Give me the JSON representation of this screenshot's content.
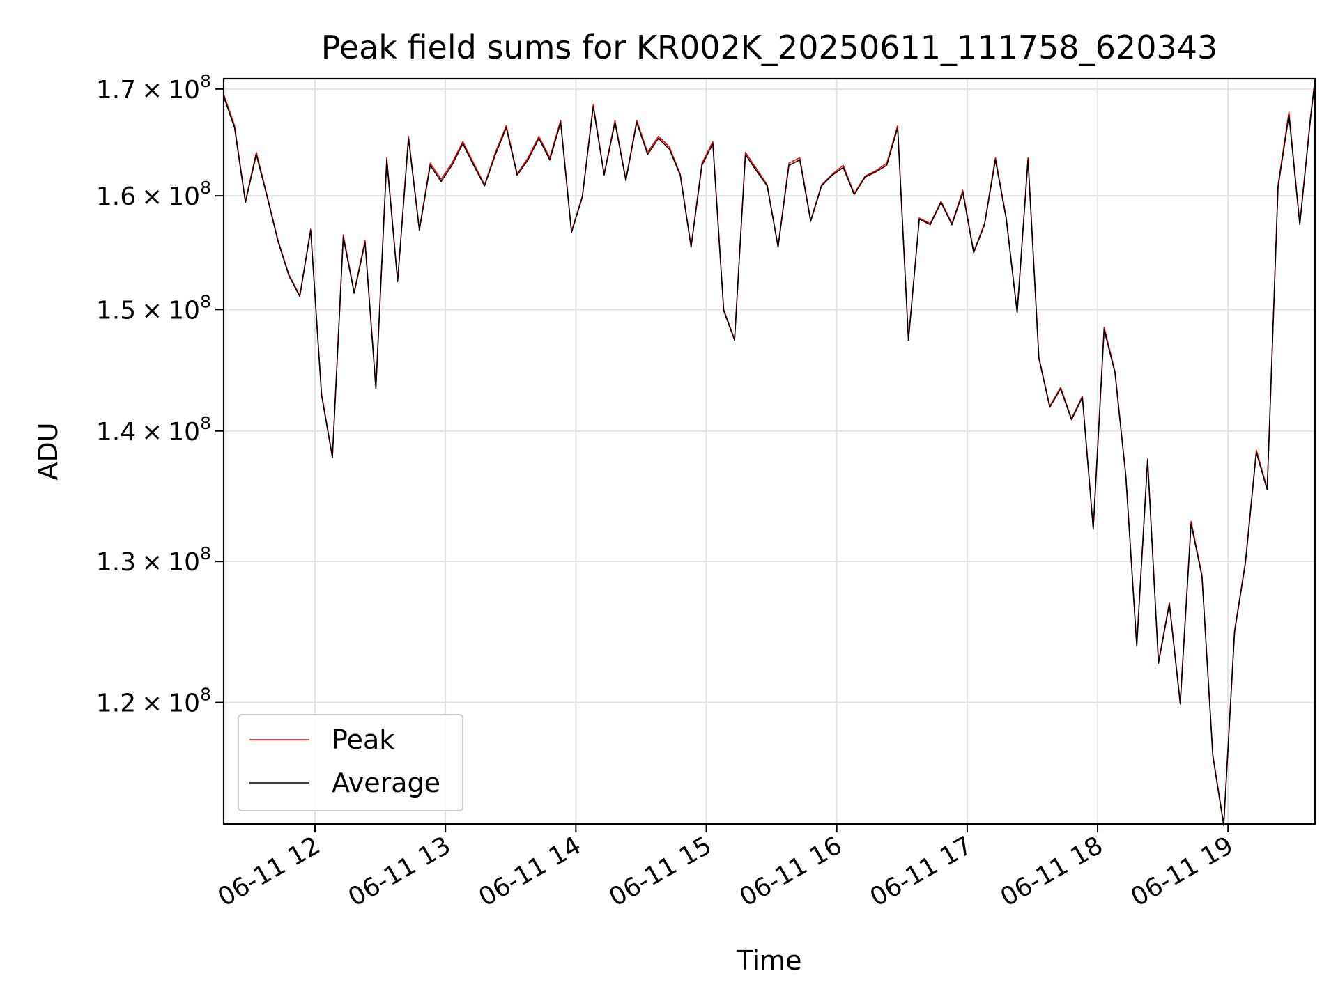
{
  "chart_data": {
    "type": "line",
    "title": "Peak field sums for KR002K_20250611_111758_620343",
    "xlabel": "Time",
    "ylabel": "ADU",
    "yscale": "log",
    "ylim": [
      112000000,
      171000000
    ],
    "xlim": [
      "06-11 11:18",
      "06-11 19:40"
    ],
    "grid": true,
    "legend_position": "lower-left",
    "x_ticks": [
      "06-11 12",
      "06-11 13",
      "06-11 14",
      "06-11 15",
      "06-11 16",
      "06-11 17",
      "06-11 18",
      "06-11 19"
    ],
    "y_ticks": [
      {
        "value": 120000000,
        "mantissa": "1.2",
        "times": "×",
        "base": "10",
        "exp": "8"
      },
      {
        "value": 130000000,
        "mantissa": "1.3",
        "times": "×",
        "base": "10",
        "exp": "8"
      },
      {
        "value": 140000000,
        "mantissa": "1.4",
        "times": "×",
        "base": "10",
        "exp": "8"
      },
      {
        "value": 150000000,
        "mantissa": "1.5",
        "times": "×",
        "base": "10",
        "exp": "8"
      },
      {
        "value": 160000000,
        "mantissa": "1.6",
        "times": "×",
        "base": "10",
        "exp": "8"
      },
      {
        "value": 170000000,
        "mantissa": "1.7",
        "times": "×",
        "base": "10",
        "exp": "8"
      }
    ],
    "x": [
      "11:18",
      "11:23",
      "11:28",
      "11:33",
      "11:38",
      "11:43",
      "11:48",
      "11:53",
      "11:58",
      "12:03",
      "12:08",
      "12:13",
      "12:18",
      "12:23",
      "12:28",
      "12:33",
      "12:38",
      "12:43",
      "12:48",
      "12:53",
      "12:58",
      "13:03",
      "13:08",
      "13:13",
      "13:18",
      "13:23",
      "13:28",
      "13:33",
      "13:38",
      "13:43",
      "13:48",
      "13:53",
      "13:58",
      "14:03",
      "14:08",
      "14:13",
      "14:18",
      "14:23",
      "14:28",
      "14:33",
      "14:38",
      "14:43",
      "14:48",
      "14:53",
      "14:58",
      "15:03",
      "15:08",
      "15:13",
      "15:18",
      "15:23",
      "15:28",
      "15:33",
      "15:38",
      "15:43",
      "15:48",
      "15:53",
      "15:58",
      "16:03",
      "16:08",
      "16:13",
      "16:18",
      "16:23",
      "16:28",
      "16:33",
      "16:38",
      "16:43",
      "16:48",
      "16:53",
      "16:58",
      "17:03",
      "17:08",
      "17:13",
      "17:18",
      "17:23",
      "17:28",
      "17:33",
      "17:38",
      "17:43",
      "17:48",
      "17:53",
      "17:58",
      "18:03",
      "18:08",
      "18:13",
      "18:18",
      "18:23",
      "18:28",
      "18:33",
      "18:38",
      "18:43",
      "18:48",
      "18:53",
      "18:58",
      "19:03",
      "19:08",
      "19:13",
      "19:18",
      "19:23",
      "19:28",
      "19:33",
      "19:38",
      "19:40"
    ],
    "series": [
      {
        "name": "Peak",
        "color": "#ff0000",
        "values": [
          169500000,
          166500000,
          159500000,
          164000000,
          160000000,
          156000000,
          153000000,
          151200000,
          157000000,
          143000000,
          138000000,
          156500000,
          151500000,
          156000000,
          143500000,
          163500000,
          152500000,
          165500000,
          157000000,
          163000000,
          161500000,
          163000000,
          165000000,
          163000000,
          161000000,
          164000000,
          166500000,
          162000000,
          163500000,
          165500000,
          163500000,
          167000000,
          156800000,
          160000000,
          168500000,
          162000000,
          167000000,
          161500000,
          167000000,
          164000000,
          165500000,
          164500000,
          162000000,
          155500000,
          163000000,
          165000000,
          150000000,
          147500000,
          164000000,
          162500000,
          161000000,
          155500000,
          163000000,
          163500000,
          157800000,
          161000000,
          162000000,
          162800000,
          160200000,
          161800000,
          162300000,
          163000000,
          166500000,
          147500000,
          158000000,
          157500000,
          159500000,
          157500000,
          160500000,
          155000000,
          157500000,
          163500000,
          158000000,
          149800000,
          163500000,
          146000000,
          142000000,
          143500000,
          141000000,
          142800000,
          132500000,
          148500000,
          144800000,
          136500000,
          124000000,
          137800000,
          122800000,
          127000000,
          120000000,
          133000000,
          129000000,
          116500000,
          112000000,
          125000000,
          130000000,
          138500000,
          135500000,
          161000000,
          167800000,
          157500000,
          167500000,
          171000000
        ]
      },
      {
        "name": "Average",
        "color": "#000000",
        "values": [
          169300000,
          166300000,
          159400000,
          163800000,
          159900000,
          155900000,
          152900000,
          151100000,
          156900000,
          142900000,
          137900000,
          156300000,
          151400000,
          155800000,
          143400000,
          163300000,
          152400000,
          165300000,
          156900000,
          162800000,
          161300000,
          162800000,
          164800000,
          162800000,
          160900000,
          163800000,
          166300000,
          161900000,
          163300000,
          165300000,
          163300000,
          166800000,
          156700000,
          159900000,
          168300000,
          161900000,
          166800000,
          161400000,
          166800000,
          163800000,
          165300000,
          164300000,
          161900000,
          155400000,
          162800000,
          164800000,
          149900000,
          147400000,
          163800000,
          162300000,
          160900000,
          155400000,
          162800000,
          163300000,
          157700000,
          160900000,
          161900000,
          162600000,
          160100000,
          161700000,
          162200000,
          162800000,
          166300000,
          147400000,
          157900000,
          157400000,
          159400000,
          157400000,
          160300000,
          154900000,
          157400000,
          163300000,
          157900000,
          149700000,
          163300000,
          145900000,
          141900000,
          143400000,
          140900000,
          142700000,
          132400000,
          148300000,
          144700000,
          136400000,
          123900000,
          137700000,
          122700000,
          126900000,
          119900000,
          132800000,
          128900000,
          116400000,
          111900000,
          124900000,
          129900000,
          138300000,
          135400000,
          160800000,
          167500000,
          157400000,
          167300000,
          170800000
        ]
      }
    ]
  }
}
